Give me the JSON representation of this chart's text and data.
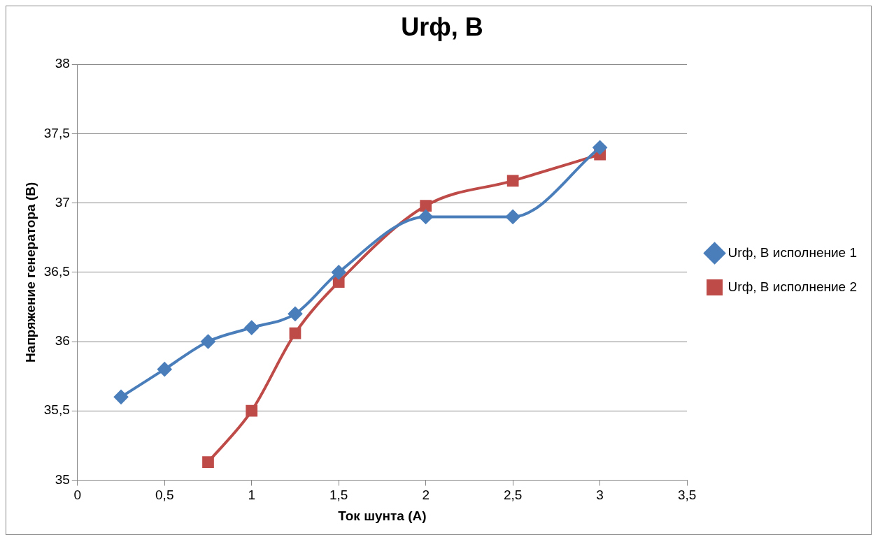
{
  "chart_data": {
    "type": "line",
    "title": "Urф, В",
    "xlabel": "Ток шунта (А)",
    "ylabel": "Напряжение генератора (В)",
    "xlim": [
      0,
      3.5
    ],
    "xticks": [
      0,
      {
        "value": 0.5,
        "label": "0,5"
      },
      1,
      {
        "value": 1.5,
        "label": "1,5"
      },
      2,
      {
        "value": 2.5,
        "label": "2,5"
      },
      3,
      {
        "value": 3.5,
        "label": "3,5"
      }
    ],
    "ylim": [
      35,
      38
    ],
    "yticks": [
      35,
      {
        "value": 35.5,
        "label": "35,5"
      },
      36,
      {
        "value": 36.5,
        "label": "36,5"
      },
      37,
      {
        "value": 37.5,
        "label": "37,5"
      },
      38
    ],
    "grid": "y",
    "legend": "right",
    "series": [
      {
        "name": "Urф, В исполнение 1",
        "color": "#4a7ebb",
        "marker": "diamond",
        "x": [
          0.25,
          0.5,
          0.75,
          1,
          1.25,
          1.5,
          2,
          2.5,
          3
        ],
        "values": [
          35.6,
          35.8,
          36.0,
          36.1,
          36.2,
          36.5,
          36.9,
          36.9,
          37.4
        ]
      },
      {
        "name": "Urф, В исполнение 2",
        "color": "#be4b48",
        "marker": "square",
        "x": [
          0.75,
          1,
          1.25,
          1.5,
          2,
          2.5,
          3
        ],
        "values": [
          35.13,
          35.5,
          36.06,
          36.43,
          36.98,
          37.16,
          37.35
        ]
      }
    ]
  }
}
